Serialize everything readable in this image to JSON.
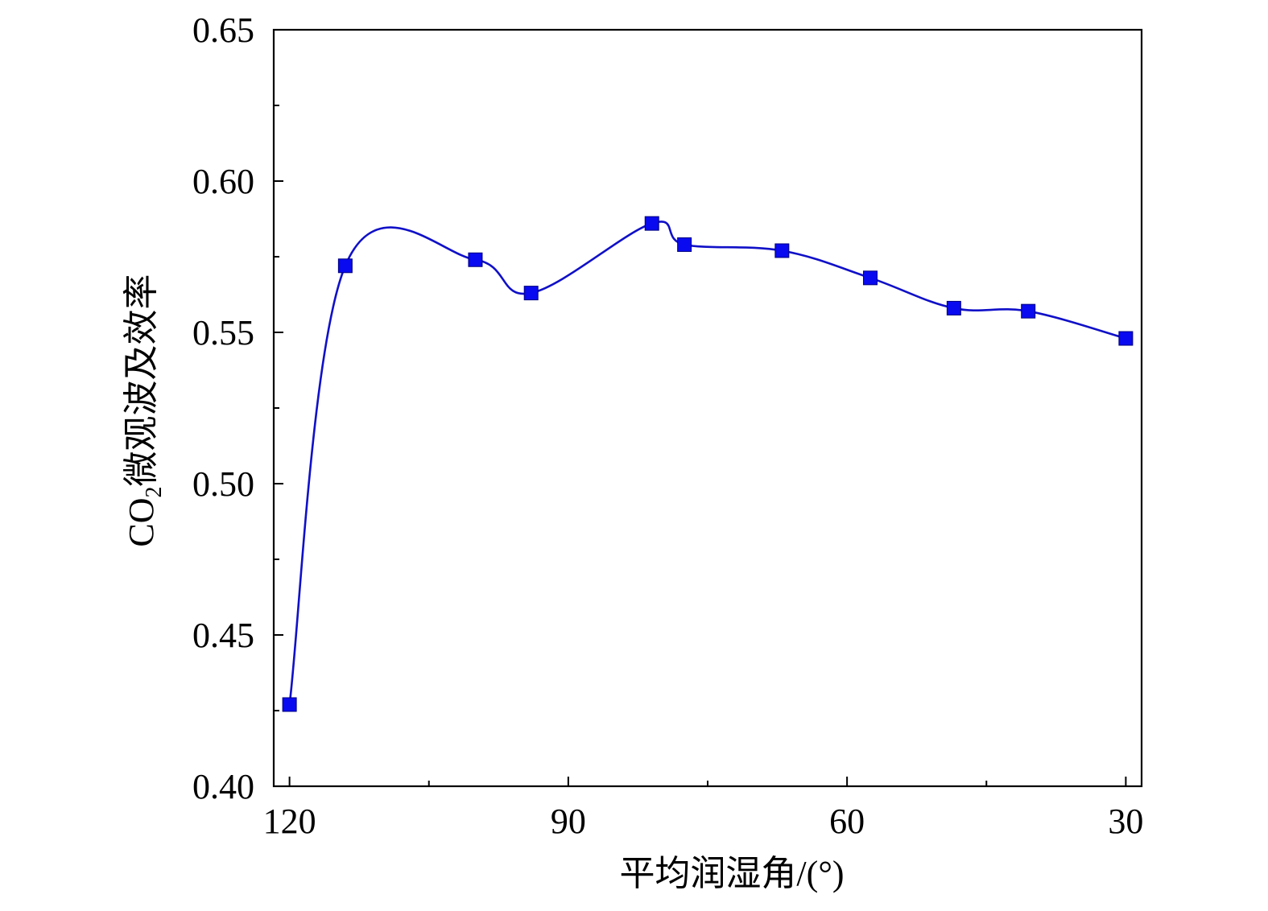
{
  "chart_data": {
    "type": "line",
    "xlabel": "平均润湿角/(°)",
    "ylabel_main": "CO",
    "ylabel_sub": "2",
    "ylabel_rest": "微观波及效率",
    "xlim": [
      121.7,
      28.3
    ],
    "ylim": [
      0.4,
      0.65
    ],
    "x_ticks": [
      120,
      90,
      60,
      30
    ],
    "x_minor_ticks": [
      105,
      75,
      45
    ],
    "y_ticks": [
      0.4,
      0.45,
      0.5,
      0.55,
      0.6,
      0.65
    ],
    "y_tick_labels": [
      "0.40",
      "0.45",
      "0.50",
      "0.55",
      "0.60",
      "0.65"
    ],
    "y_minor_ticks": [
      0.425,
      0.475,
      0.525,
      0.575,
      0.625
    ],
    "series": [
      {
        "marker": "square",
        "color": "#0a0af0",
        "line_color": "#1010c8",
        "smooth": true,
        "x": [
          120,
          114,
          100,
          94,
          81,
          77.5,
          67,
          57.5,
          48.5,
          40.5,
          30
        ],
        "y": [
          0.427,
          0.572,
          0.574,
          0.563,
          0.586,
          0.579,
          0.577,
          0.568,
          0.558,
          0.557,
          0.548
        ]
      }
    ]
  }
}
